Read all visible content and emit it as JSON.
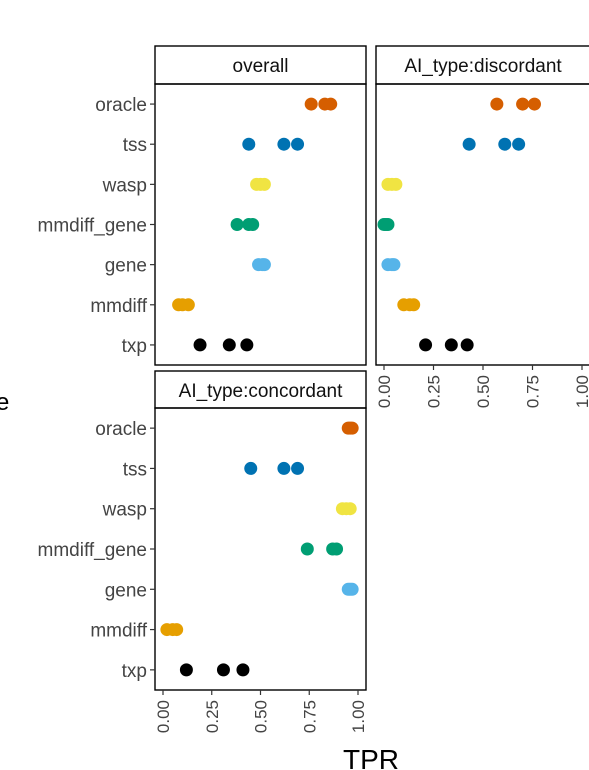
{
  "chart_data": {
    "type": "scatter",
    "xlabel": "TPR",
    "ylabel_partial": "e",
    "xlim": [
      0,
      1
    ],
    "x_ticks": [
      "0.00",
      "0.25",
      "0.50",
      "0.75",
      "1.00"
    ],
    "categories": [
      "oracle",
      "tss",
      "wasp",
      "mmdiff_gene",
      "gene",
      "mmdiff",
      "txp"
    ],
    "colors": {
      "oracle": "#D55E00",
      "tss": "#0072B2",
      "wasp": "#F0E442",
      "mmdiff_gene": "#009E73",
      "gene": "#56B4E9",
      "mmdiff": "#E69F00",
      "txp": "#000000"
    },
    "panels": [
      {
        "title": "overall",
        "points": {
          "oracle": [
            0.76,
            0.83,
            0.86
          ],
          "tss": [
            0.44,
            0.62,
            0.69
          ],
          "wasp": [
            0.48,
            0.5,
            0.52
          ],
          "mmdiff_gene": [
            0.38,
            0.44,
            0.46
          ],
          "gene": [
            0.49,
            0.51,
            0.52
          ],
          "mmdiff": [
            0.08,
            0.1,
            0.13
          ],
          "txp": [
            0.19,
            0.34,
            0.43
          ]
        }
      },
      {
        "title": "AI_type:discordant",
        "points": {
          "oracle": [
            0.57,
            0.7,
            0.76
          ],
          "tss": [
            0.43,
            0.61,
            0.68
          ],
          "wasp": [
            0.02,
            0.04,
            0.06
          ],
          "mmdiff_gene": [
            0.0,
            0.01,
            0.02
          ],
          "gene": [
            0.02,
            0.04,
            0.05
          ],
          "mmdiff": [
            0.1,
            0.13,
            0.15
          ],
          "txp": [
            0.21,
            0.34,
            0.42
          ]
        }
      },
      {
        "title": "AI_type:concordant",
        "points": {
          "oracle": [
            0.95,
            0.96,
            0.97
          ],
          "tss": [
            0.45,
            0.62,
            0.69
          ],
          "wasp": [
            0.92,
            0.94,
            0.96
          ],
          "mmdiff_gene": [
            0.74,
            0.87,
            0.89
          ],
          "gene": [
            0.95,
            0.96,
            0.97
          ],
          "mmdiff": [
            0.02,
            0.05,
            0.07
          ],
          "txp": [
            0.12,
            0.31,
            0.41
          ]
        }
      }
    ]
  }
}
